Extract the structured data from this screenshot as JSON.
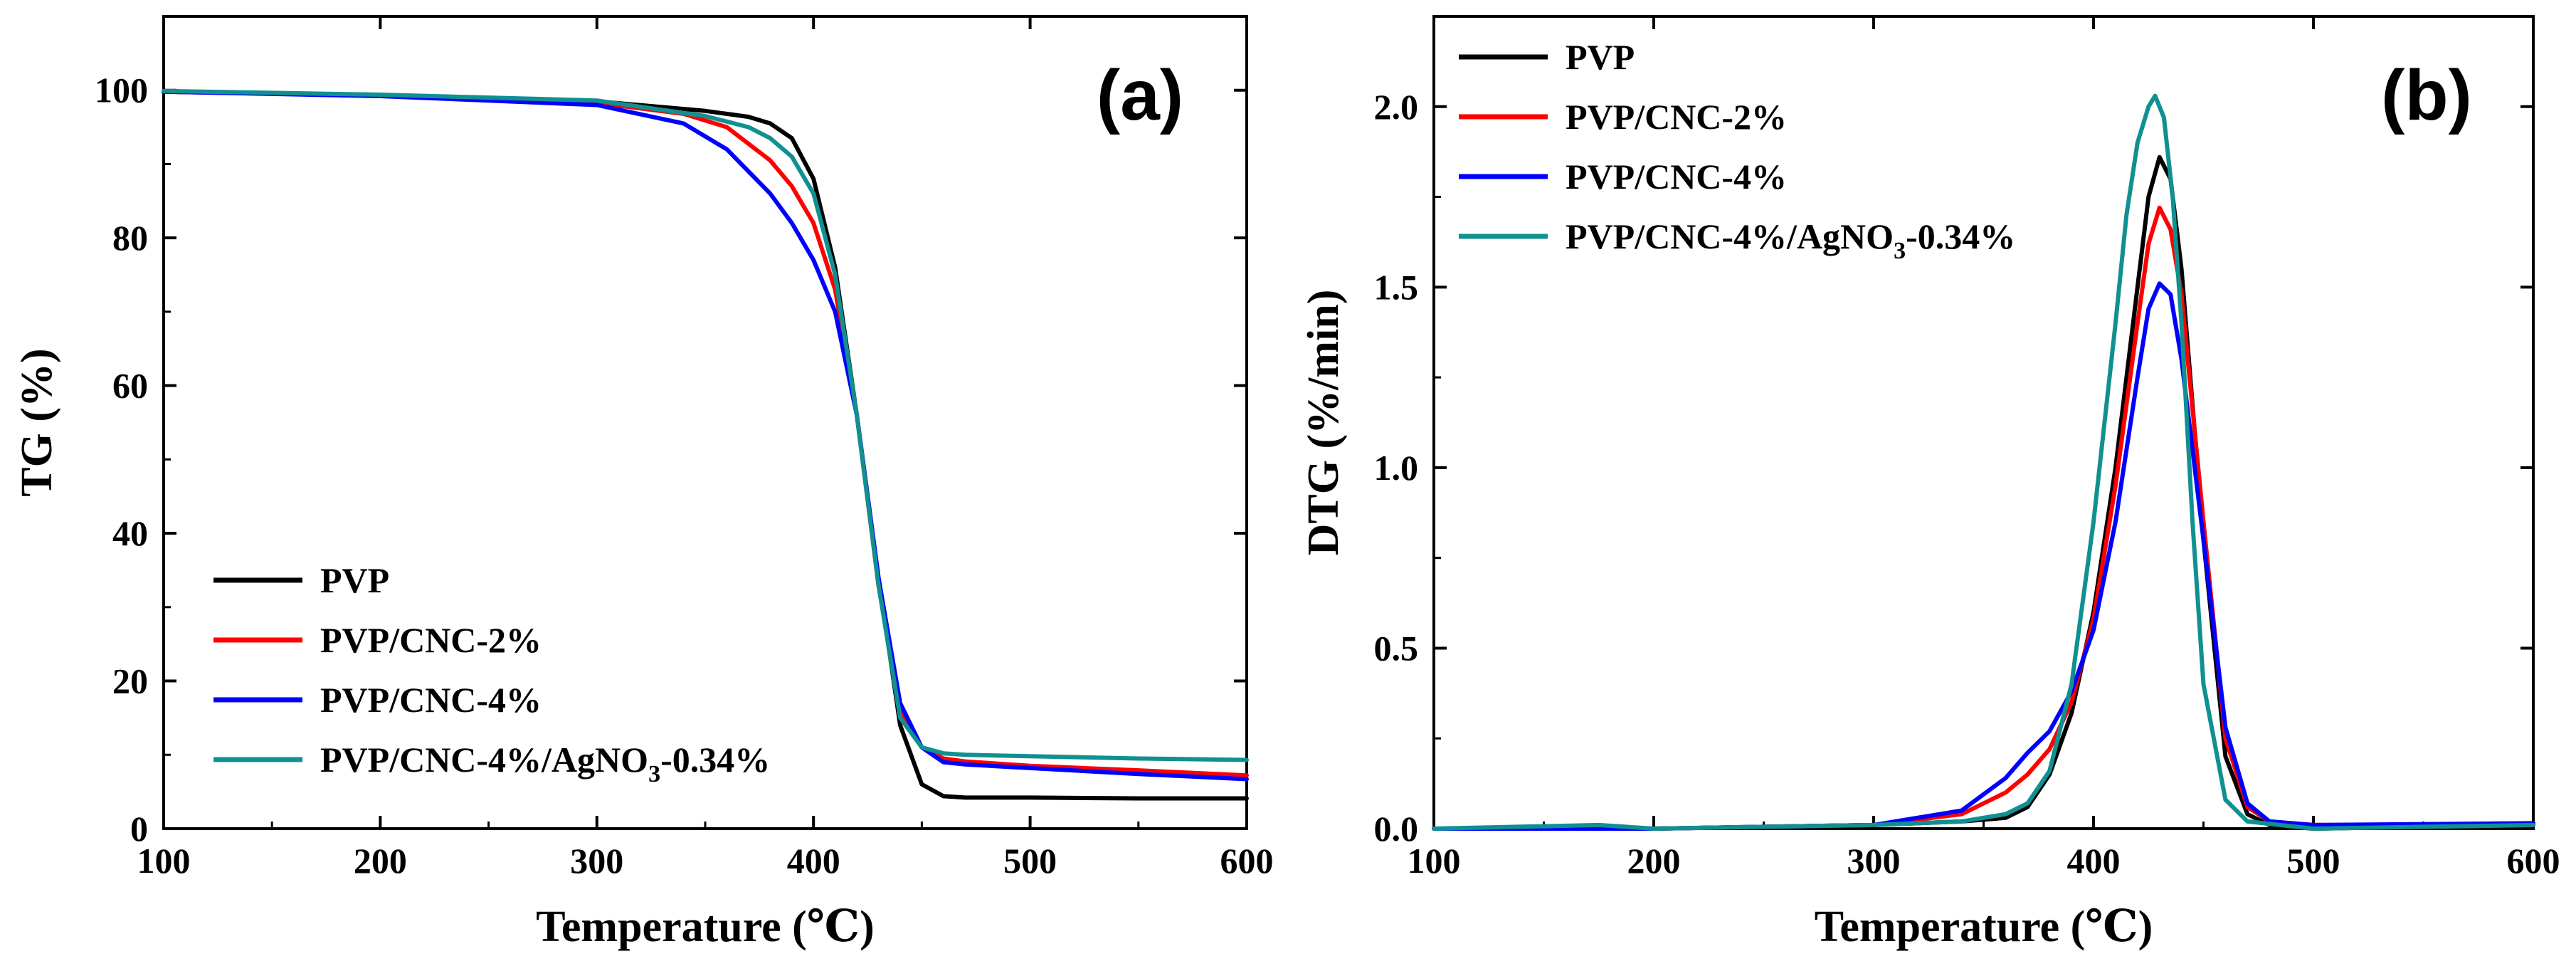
{
  "chart_data": [
    {
      "type": "line",
      "panel_label": "(a)",
      "xlabel": "Temperature (℃)",
      "ylabel": "TG (%)",
      "xlim": [
        100,
        600
      ],
      "ylim": [
        0,
        110
      ],
      "x_ticks": [
        100,
        200,
        300,
        400,
        500,
        600
      ],
      "y_ticks": [
        0,
        20,
        40,
        60,
        80,
        100
      ],
      "legend_position": "bottom-left",
      "grid": false,
      "series": [
        {
          "name": "PVP",
          "color": "#000000",
          "x": [
            100,
            200,
            300,
            350,
            370,
            380,
            390,
            400,
            410,
            420,
            430,
            440,
            450,
            460,
            470,
            500,
            550,
            600
          ],
          "y": [
            99.8,
            99.3,
            98.5,
            97.2,
            96.4,
            95.5,
            93.5,
            88,
            76,
            56,
            34,
            14,
            6,
            4.4,
            4.2,
            4.2,
            4.1,
            4.1
          ]
        },
        {
          "name": "PVP/CNC-2%",
          "color": "#ff0000",
          "x": [
            100,
            200,
            300,
            340,
            360,
            380,
            390,
            400,
            410,
            420,
            430,
            440,
            450,
            460,
            470,
            500,
            550,
            600
          ],
          "y": [
            99.8,
            99.3,
            98.3,
            96.8,
            95,
            90.5,
            87,
            82,
            73,
            56,
            33,
            16,
            11,
            9.5,
            9.1,
            8.5,
            7.9,
            7.2
          ]
        },
        {
          "name": "PVP/CNC-4%",
          "color": "#0000ff",
          "x": [
            100,
            200,
            300,
            340,
            360,
            380,
            390,
            400,
            410,
            420,
            430,
            440,
            450,
            460,
            470,
            500,
            550,
            600
          ],
          "y": [
            99.8,
            99.2,
            98,
            95.5,
            92,
            86,
            82,
            77,
            70,
            56,
            34,
            17,
            11,
            9,
            8.7,
            8.2,
            7.4,
            6.7
          ]
        },
        {
          "name": "PVP/CNC-4%/AgNO3-0.34%",
          "color": "#109090",
          "x": [
            100,
            200,
            300,
            350,
            370,
            380,
            390,
            400,
            410,
            420,
            430,
            440,
            450,
            460,
            470,
            500,
            550,
            600
          ],
          "y": [
            99.9,
            99.4,
            98.6,
            96.5,
            95,
            93.5,
            91,
            86,
            75,
            56,
            33,
            15,
            11,
            10.2,
            10,
            9.8,
            9.5,
            9.3
          ]
        }
      ]
    },
    {
      "type": "line",
      "panel_label": "(b)",
      "xlabel": "Temperature (℃)",
      "ylabel": "DTG (%/min)",
      "xlim": [
        100,
        600
      ],
      "ylim": [
        0,
        2.25
      ],
      "x_ticks": [
        100,
        200,
        300,
        400,
        500,
        600
      ],
      "y_ticks": [
        0.0,
        0.5,
        1.0,
        1.5,
        2.0
      ],
      "legend_position": "top-left",
      "grid": false,
      "series": [
        {
          "name": "PVP",
          "color": "#000000",
          "x": [
            100,
            200,
            300,
            340,
            360,
            370,
            380,
            390,
            400,
            410,
            420,
            425,
            430,
            435,
            440,
            450,
            460,
            470,
            480,
            500,
            600
          ],
          "y": [
            0,
            0,
            0.01,
            0.02,
            0.03,
            0.06,
            0.15,
            0.32,
            0.6,
            1.0,
            1.5,
            1.75,
            1.86,
            1.8,
            1.55,
            0.8,
            0.2,
            0.04,
            0.01,
            0,
            0.01
          ]
        },
        {
          "name": "PVP/CNC-2%",
          "color": "#ff0000",
          "x": [
            100,
            200,
            300,
            340,
            360,
            370,
            380,
            390,
            400,
            410,
            420,
            425,
            430,
            435,
            440,
            450,
            460,
            470,
            480,
            500,
            600
          ],
          "y": [
            0,
            0,
            0.01,
            0.04,
            0.1,
            0.15,
            0.22,
            0.35,
            0.58,
            0.95,
            1.4,
            1.62,
            1.72,
            1.66,
            1.48,
            0.85,
            0.25,
            0.06,
            0.02,
            0.01,
            0.01
          ]
        },
        {
          "name": "PVP/CNC-4%",
          "color": "#0000ff",
          "x": [
            100,
            200,
            300,
            340,
            360,
            370,
            380,
            390,
            400,
            410,
            420,
            425,
            430,
            435,
            440,
            450,
            460,
            470,
            480,
            500,
            600
          ],
          "y": [
            0,
            0,
            0.01,
            0.05,
            0.14,
            0.21,
            0.27,
            0.38,
            0.55,
            0.85,
            1.25,
            1.44,
            1.51,
            1.48,
            1.3,
            0.8,
            0.28,
            0.07,
            0.02,
            0.01,
            0.015
          ]
        },
        {
          "name": "PVP/CNC-4%/AgNO3-0.34%",
          "color": "#109090",
          "x": [
            100,
            175,
            200,
            300,
            340,
            360,
            370,
            380,
            390,
            400,
            410,
            415,
            420,
            425,
            428,
            432,
            436,
            440,
            445,
            450,
            460,
            470,
            500,
            600
          ],
          "y": [
            0,
            0.01,
            0,
            0.01,
            0.02,
            0.04,
            0.07,
            0.16,
            0.4,
            0.85,
            1.4,
            1.7,
            1.9,
            2.0,
            2.03,
            1.97,
            1.75,
            1.4,
            0.85,
            0.4,
            0.08,
            0.02,
            0,
            0.01
          ]
        }
      ]
    }
  ]
}
